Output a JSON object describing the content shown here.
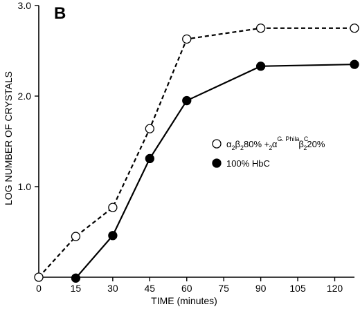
{
  "chart_data": {
    "type": "line",
    "panel_label": "B",
    "xlabel": "TIME (minutes)",
    "ylabel": "LOG NUMBER OF CRYSTALS",
    "xlim": [
      0,
      128
    ],
    "ylim": [
      0,
      3.0
    ],
    "x_ticks": [
      0,
      15,
      30,
      45,
      60,
      75,
      90,
      105,
      120
    ],
    "y_ticks": [
      {
        "value": 1.0,
        "label": "1.0"
      },
      {
        "value": 2.0,
        "label": "2.0"
      },
      {
        "value": 3.0,
        "label": "3.0"
      }
    ],
    "grid": false,
    "legend_position": "right",
    "series": [
      {
        "legend": {
          "a": "α",
          "a_sub": "2",
          "b": "β",
          "b_sub": "2",
          "pct1": "80% + ",
          "a2": "α",
          "a2_sup": "G. Phila",
          "a2_sub": "2",
          "b2": "β",
          "b2_sup": "C",
          "b2_sub": "2",
          "pct2": "20%"
        },
        "marker": "open-circle",
        "line_style": "dashed",
        "x": [
          0,
          15,
          30,
          45,
          60,
          90,
          128
        ],
        "y": [
          0,
          0.45,
          0.77,
          1.64,
          2.63,
          2.75,
          2.75
        ]
      },
      {
        "legend": {
          "text": "100% HbC"
        },
        "marker": "filled-circle",
        "line_style": "solid",
        "x": [
          15,
          30,
          45,
          60,
          90,
          128
        ],
        "y": [
          -0.01,
          0.46,
          1.31,
          1.95,
          2.33,
          2.35
        ]
      }
    ]
  }
}
